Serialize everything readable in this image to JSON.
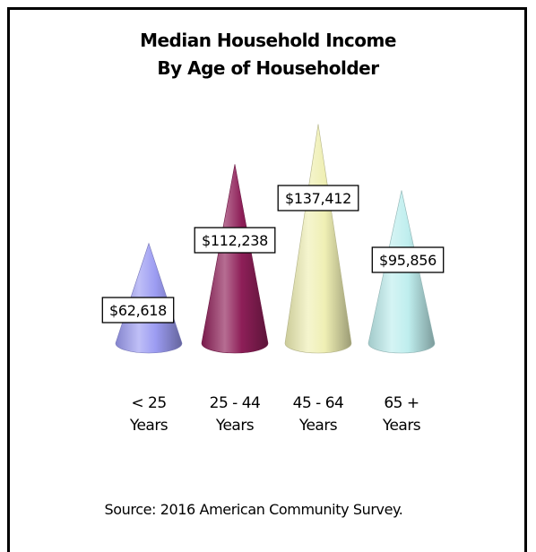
{
  "chart_data": {
    "type": "bar",
    "bar_shape": "cone",
    "title_lines": [
      "Median Household Income",
      "By Age of Householder"
    ],
    "categories": [
      {
        "line1": "< 25",
        "line2": "Years"
      },
      {
        "line1": "25 - 44",
        "line2": "Years"
      },
      {
        "line1": "45 - 64",
        "line2": "Years"
      },
      {
        "line1": "65 +",
        "line2": "Years"
      }
    ],
    "values": [
      62618,
      112238,
      137412,
      95856
    ],
    "data_labels": [
      "$62,618",
      "$112,238",
      "$137,412",
      "$95,856"
    ],
    "colors": [
      "#9c9cf2",
      "#8e1f58",
      "#efefb4",
      "#bfeeee"
    ],
    "ylim": [
      0,
      145000
    ],
    "grid": false,
    "legend": "none"
  },
  "source_note": "Source:  2016 American Community Survey."
}
